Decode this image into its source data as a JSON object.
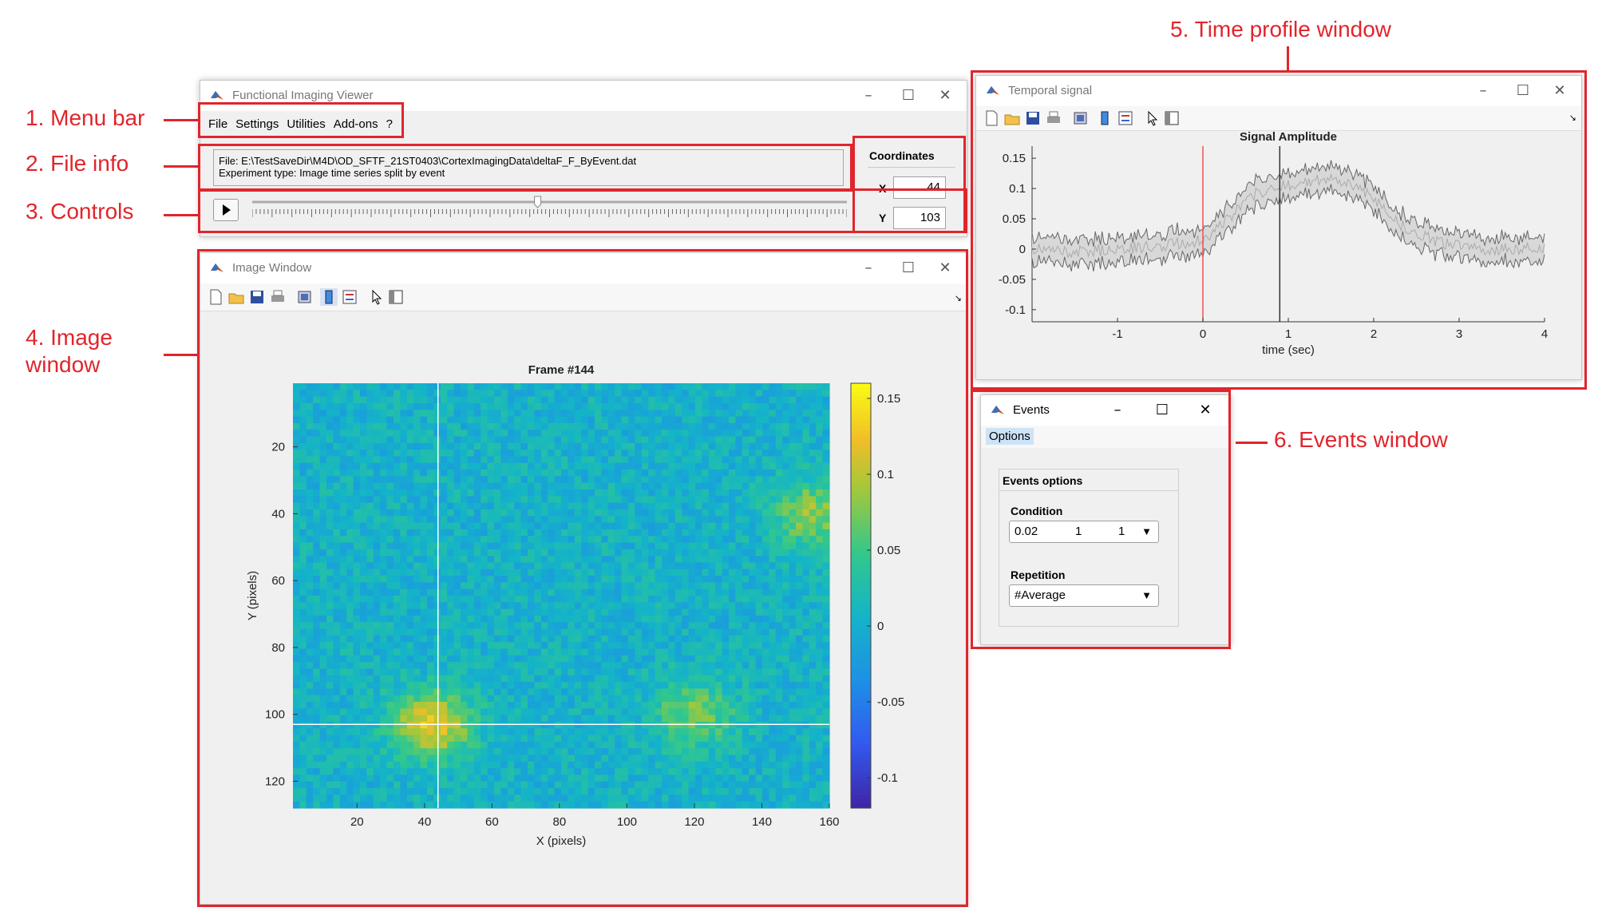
{
  "annotations": {
    "menu_bar": "1. Menu bar",
    "file_info": "2. File info",
    "controls": "3. Controls",
    "image_window_l1": "4. Image",
    "image_window_l2": "window",
    "time_profile": "5. Time profile window",
    "events_window": "6. Events window",
    "color": "#e0252c"
  },
  "main_window": {
    "title": "Functional Imaging Viewer",
    "menu": [
      "File",
      "Settings",
      "Utilities",
      "Add-ons",
      "?"
    ],
    "file_line": "File: E:\\TestSaveDir\\M4D\\OD_SFTF_21ST0403\\CortexImagingData\\deltaF_F_ByEvent.dat",
    "type_line": "Experiment type: Image time series split by event",
    "coordinates": {
      "title": "Coordinates",
      "x_label": "X",
      "x_value": "44",
      "y_label": "Y",
      "y_value": "103"
    },
    "play_icon": "play-icon",
    "slider_position": 0.48
  },
  "image_window": {
    "title": "Image Window",
    "chart_data": {
      "type": "heatmap",
      "title": "Frame #144",
      "xlabel": "X (pixels)",
      "ylabel": "Y (pixels)",
      "xticks": [
        20,
        40,
        60,
        80,
        100,
        120,
        140,
        160
      ],
      "yticks": [
        20,
        40,
        60,
        80,
        100,
        120
      ],
      "xlim": [
        1,
        160
      ],
      "ylim": [
        1,
        128
      ],
      "crosshair": {
        "x": 44,
        "y": 103
      },
      "colormap": "parula",
      "colorbar_ticks": [
        0.15,
        0.1,
        0.05,
        0,
        -0.05,
        -0.1
      ],
      "colorbar_range": [
        -0.12,
        0.16
      ],
      "hotspots": [
        {
          "x": 42,
          "y": 103,
          "value": 0.12
        },
        {
          "x": 120,
          "y": 100,
          "value": 0.07
        },
        {
          "x": 155,
          "y": 40,
          "value": 0.08
        }
      ]
    }
  },
  "temporal_window": {
    "title": "Temporal signal",
    "chart_data": {
      "type": "line",
      "title": "Signal Amplitude",
      "xlabel": "time (sec)",
      "ylabel": "",
      "xlim": [
        -2,
        4
      ],
      "ylim": [
        -0.12,
        0.17
      ],
      "xticks": [
        -1,
        0,
        1,
        2,
        3,
        4
      ],
      "yticks": [
        0.15,
        0.1,
        0.05,
        0,
        -0.05,
        -0.1
      ],
      "red_marker_x": 0,
      "black_marker_x": 0.9,
      "series": [
        {
          "x": [
            -2,
            -1.5,
            -1,
            -0.5,
            0,
            0.3,
            0.6,
            0.9,
            1.2,
            1.5,
            1.8,
            2.1,
            2.4,
            2.8,
            3.2,
            3.6,
            4
          ],
          "values": [
            0.0,
            -0.005,
            0.0,
            0.005,
            0.015,
            0.05,
            0.09,
            0.105,
            0.11,
            0.115,
            0.105,
            0.07,
            0.03,
            0.01,
            0.0,
            0.0,
            0.0
          ],
          "band": 0.015
        }
      ]
    }
  },
  "events_window": {
    "title": "Events",
    "menu": "Options",
    "group_title": "Events options",
    "condition_label": "Condition",
    "condition_values": [
      "0.02",
      "1",
      "1"
    ],
    "repetition_label": "Repetition",
    "repetition_value": "#Average"
  }
}
